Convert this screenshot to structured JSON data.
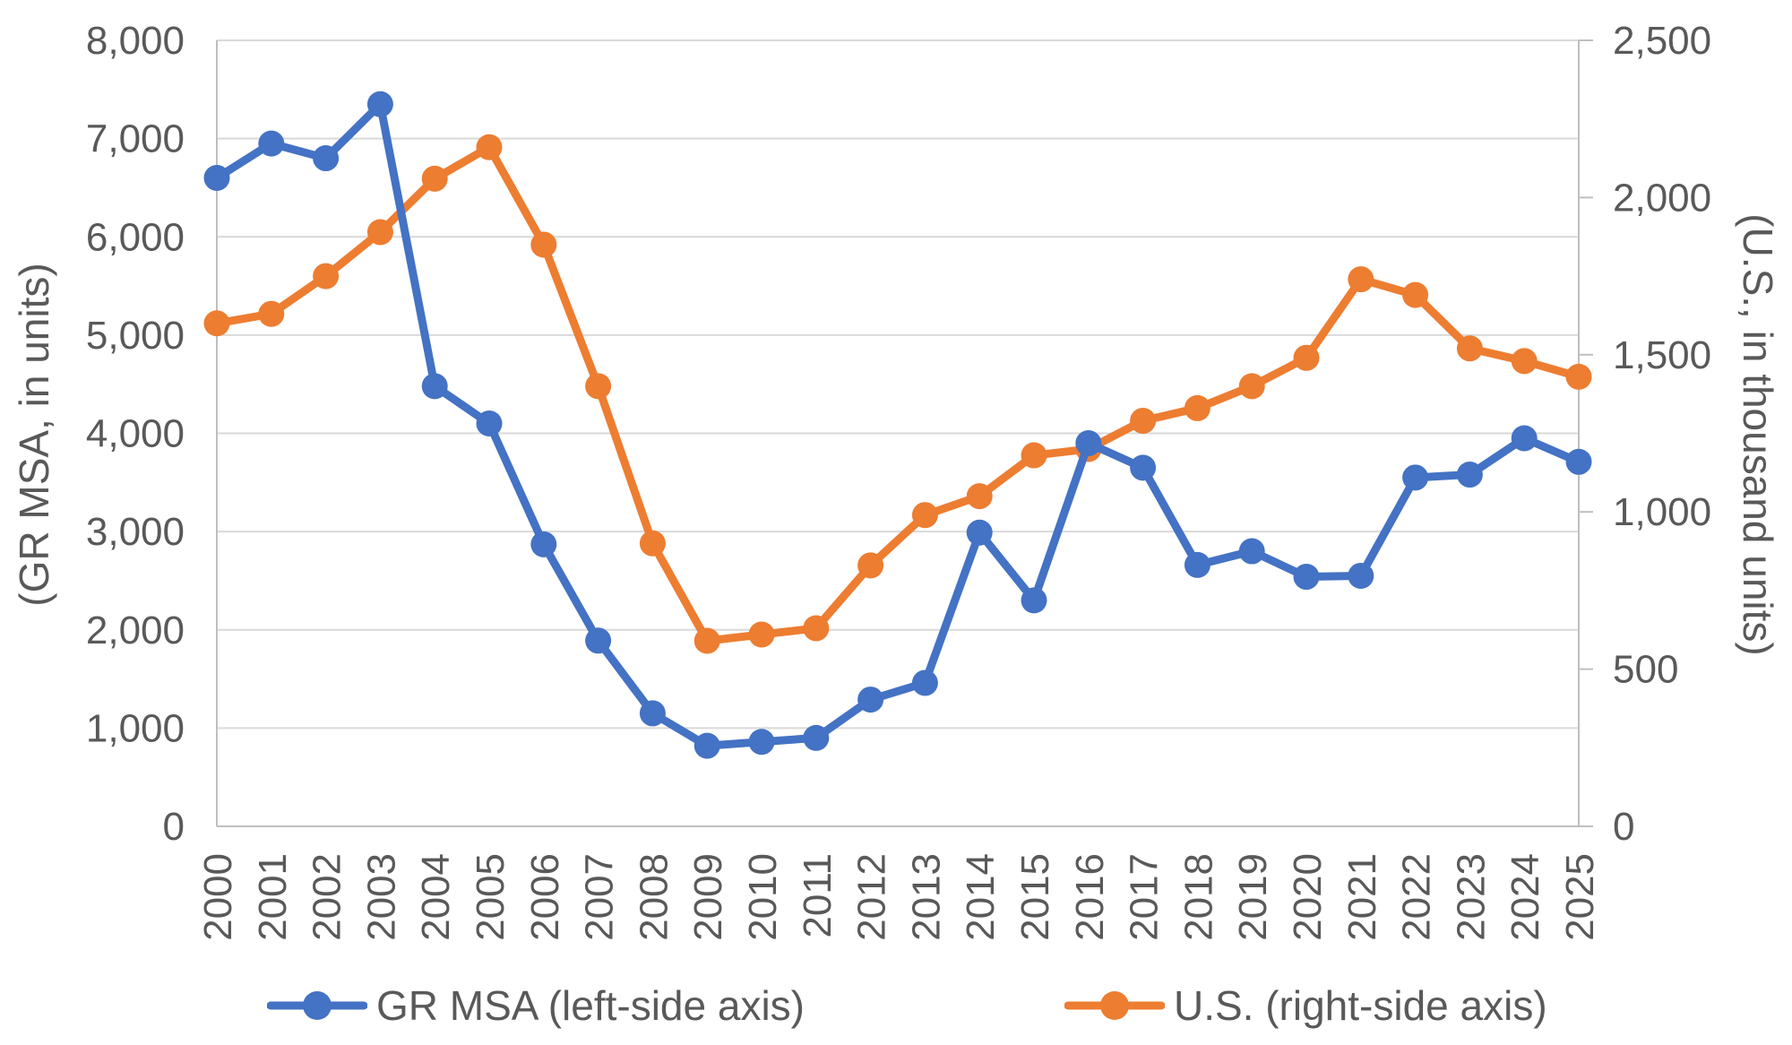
{
  "style": {
    "background": "#FFFFFF",
    "text_color": "#595959",
    "gridline_color": "#D9D9D9",
    "axis_line_color": "#BFBFBF",
    "series_blue": "#4472C4",
    "series_orange": "#ED7D31"
  },
  "chart_data": {
    "type": "line",
    "title": "",
    "grid": "horizontal",
    "x": [
      2000,
      2001,
      2002,
      2003,
      2004,
      2005,
      2006,
      2007,
      2008,
      2009,
      2010,
      2011,
      2012,
      2013,
      2014,
      2015,
      2016,
      2017,
      2018,
      2019,
      2020,
      2021,
      2022,
      2023,
      2024,
      2025
    ],
    "series": [
      {
        "id": "gr-msa",
        "name": "GR MSA (left-side axis)",
        "axis": "left",
        "color": "#4472C4",
        "marker": "circle",
        "values": [
          6600,
          6950,
          6800,
          7350,
          4480,
          4100,
          2870,
          1890,
          1150,
          820,
          860,
          900,
          1290,
          1460,
          2990,
          2300,
          3900,
          3650,
          2660,
          2800,
          2540,
          2550,
          3550,
          3580,
          3950,
          3710
        ]
      },
      {
        "id": "us",
        "name": "U.S. (right-side axis)",
        "axis": "right",
        "color": "#ED7D31",
        "marker": "circle",
        "values": [
          1600,
          1630,
          1750,
          1890,
          2060,
          2160,
          1850,
          1400,
          900,
          590,
          610,
          630,
          830,
          990,
          1050,
          1180,
          1200,
          1290,
          1330,
          1400,
          1490,
          1740,
          1690,
          1520,
          1480,
          1430
        ]
      }
    ],
    "axes": {
      "left": {
        "title": "(GR MSA, in units)",
        "min": 0,
        "max": 8000,
        "step": 1000,
        "tick_labels": [
          "0",
          "1,000",
          "2,000",
          "3,000",
          "4,000",
          "5,000",
          "6,000",
          "7,000",
          "8,000"
        ]
      },
      "right": {
        "title": "(U.S., in thousand units)",
        "min": 0,
        "max": 2500,
        "step": 500,
        "tick_labels": [
          "0",
          "500",
          "1,000",
          "1,500",
          "2,000",
          "2,500"
        ]
      }
    },
    "legend": {
      "position": "bottom",
      "entries": [
        "GR MSA (left-side axis)",
        "U.S. (right-side axis)"
      ]
    }
  }
}
